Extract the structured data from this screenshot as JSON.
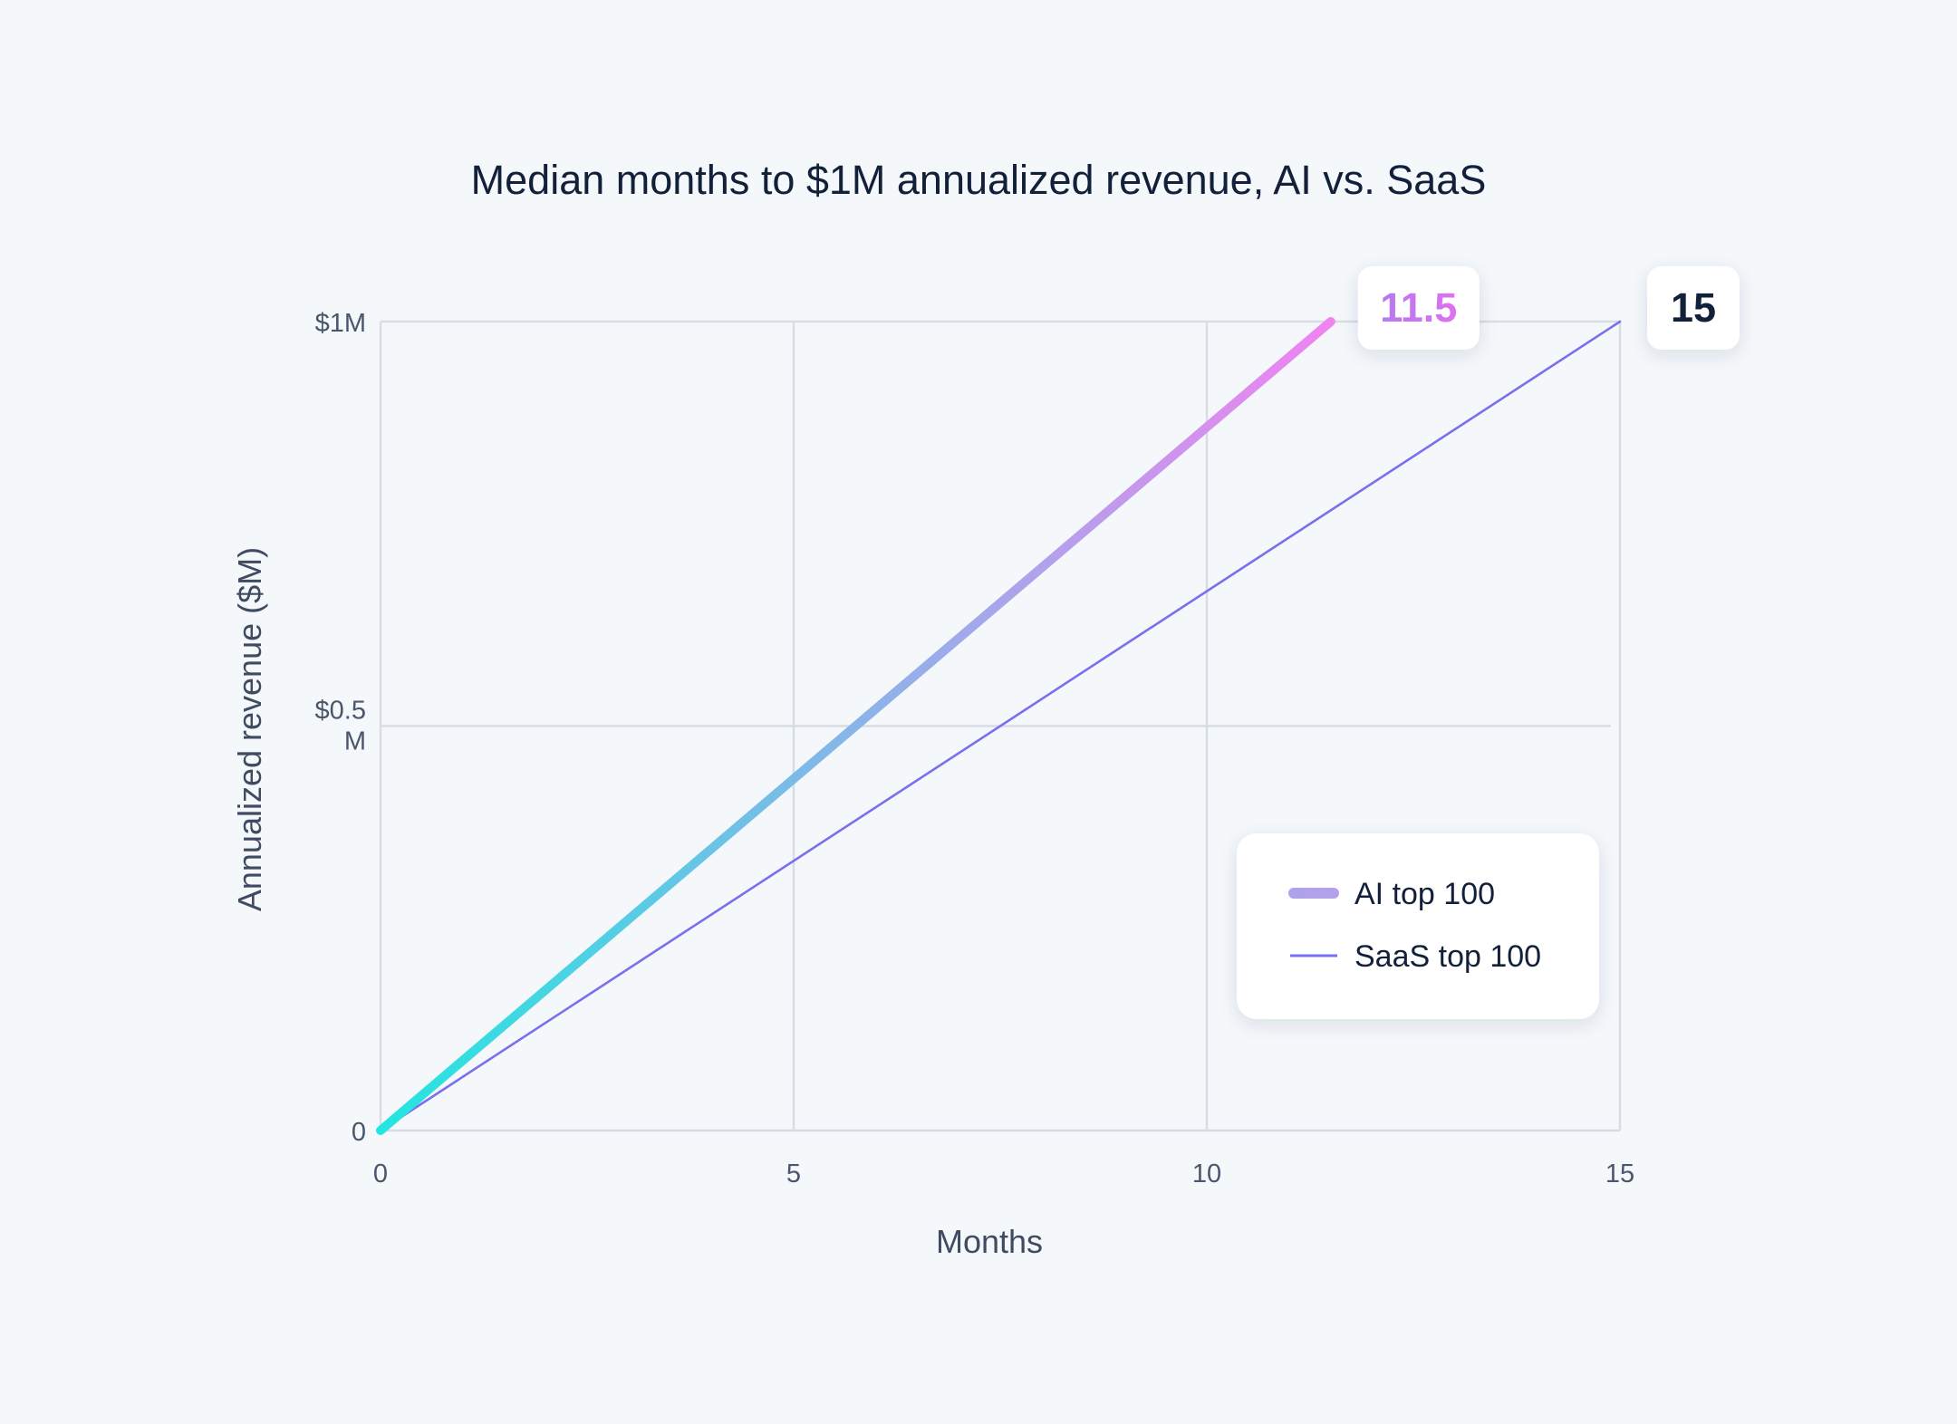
{
  "chart_data": {
    "type": "line",
    "title": "Median months to $1M annualized revenue, AI vs. SaaS",
    "xlabel": "Months",
    "ylabel": "Annualized revenue ($M)",
    "xlim": [
      0,
      15
    ],
    "ylim": [
      0,
      1
    ],
    "x_ticks": [
      {
        "value": 0,
        "label": "0"
      },
      {
        "value": 5,
        "label": "5"
      },
      {
        "value": 10,
        "label": "10"
      },
      {
        "value": 15,
        "label": "15"
      }
    ],
    "y_ticks": [
      {
        "value": 0,
        "label": "0"
      },
      {
        "value": 0.5,
        "label": "$0.5 M"
      },
      {
        "value": 1,
        "label": "$1M"
      }
    ],
    "grid": true,
    "legend_position": "bottom-right",
    "series": [
      {
        "name": "AI top 100",
        "x": [
          0,
          11.5
        ],
        "y": [
          0,
          1
        ],
        "color_start": "#22e6e0",
        "color_end": "#f083f0",
        "callout": "11.5",
        "callout_color": "#c16cf2"
      },
      {
        "name": "SaaS top 100",
        "x": [
          0,
          15
        ],
        "y": [
          0,
          1
        ],
        "color": "#7a6ff0",
        "callout": "15",
        "callout_color": "#12203a"
      }
    ]
  }
}
